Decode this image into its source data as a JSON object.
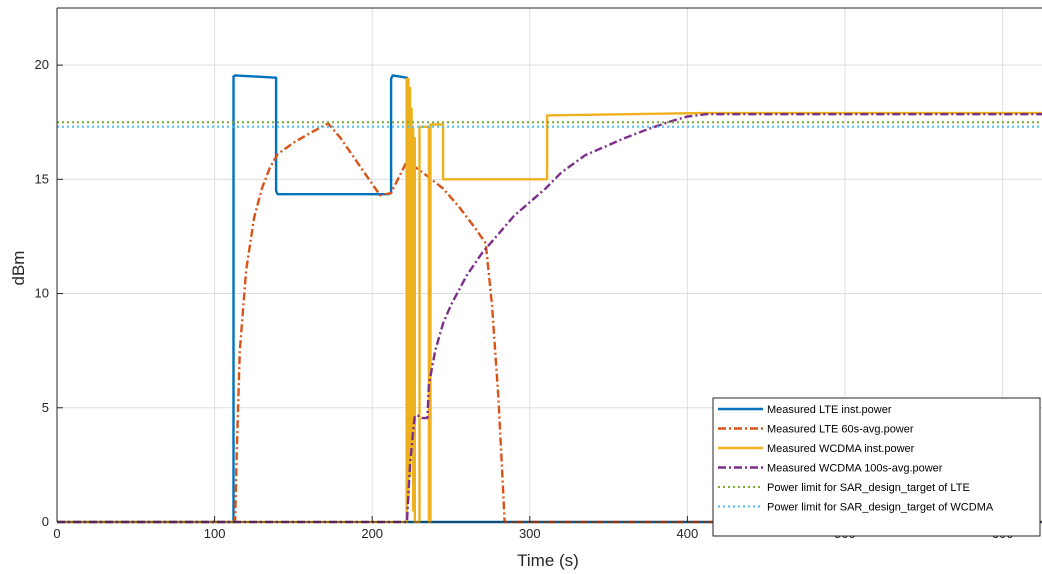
{
  "chart_data": {
    "type": "line",
    "title": "",
    "xlabel": "Time (s)",
    "ylabel": "dBm",
    "xlim": [
      0,
      625
    ],
    "ylim": [
      0,
      22.5
    ],
    "xticks": [
      0,
      100,
      200,
      300,
      400,
      500,
      600
    ],
    "yticks": [
      0,
      5,
      10,
      15,
      20
    ],
    "grid": true,
    "legend_position": "bottom-right",
    "series": [
      {
        "name": "Measured LTE inst.power",
        "color": "#0072BD",
        "dash": "solid",
        "x": [
          0,
          112,
          112,
          113,
          139,
          139,
          140,
          210,
          212,
          212,
          213,
          222,
          222,
          223,
          625
        ],
        "y": [
          0,
          0,
          19.5,
          19.55,
          19.45,
          14.5,
          14.35,
          14.35,
          14.4,
          19.4,
          19.55,
          19.45,
          0,
          0,
          0
        ]
      },
      {
        "name": "Measured LTE 60s-avg.power",
        "color": "#D95319",
        "dash": "dashdot",
        "x": [
          0,
          113,
          114,
          116,
          120,
          125,
          130,
          135,
          140,
          150,
          160,
          172,
          180,
          190,
          200,
          205,
          212,
          222,
          232,
          245,
          255,
          265,
          272,
          276,
          280,
          283,
          284,
          625
        ],
        "y": [
          0,
          0,
          3,
          7.5,
          11,
          13.3,
          14.6,
          15.5,
          16.1,
          16.6,
          17.0,
          17.45,
          16.8,
          15.8,
          14.8,
          14.3,
          14.4,
          15.8,
          15.3,
          14.6,
          13.8,
          12.9,
          12.2,
          9.5,
          5.5,
          1.5,
          0,
          0
        ]
      },
      {
        "name": "Measured WCDMA inst.power",
        "color": "#EDB120",
        "dash": "solid",
        "x": [
          0,
          222,
          222,
          223,
          223,
          224,
          224,
          225,
          225,
          226,
          226,
          227,
          227,
          230,
          230,
          236,
          236,
          237,
          237,
          245,
          245,
          248,
          248,
          311,
          311,
          410,
          625
        ],
        "y": [
          0,
          0,
          19.4,
          19.4,
          1,
          19.0,
          2,
          18.1,
          3,
          17.2,
          0.5,
          16.8,
          0,
          0,
          17.3,
          17.3,
          0,
          0,
          17.4,
          17.4,
          15.0,
          15.0,
          15.0,
          15.0,
          17.8,
          17.9,
          17.9
        ]
      },
      {
        "name": "Measured WCDMA 100s-avg.power",
        "color": "#7E2F8E",
        "dash": "dashdot",
        "x": [
          0,
          222,
          224,
          226,
          227,
          230,
          232,
          235,
          236,
          240,
          245,
          250,
          260,
          270,
          280,
          290,
          300,
          310,
          320,
          330,
          335,
          340,
          350,
          360,
          375,
          390,
          400,
          412,
          450,
          500,
          625
        ],
        "y": [
          0,
          0,
          2.5,
          4.0,
          4.65,
          4.65,
          4.55,
          4.55,
          6.0,
          7.5,
          8.7,
          9.5,
          10.8,
          11.8,
          12.6,
          13.4,
          14.0,
          14.6,
          15.3,
          15.8,
          16.05,
          16.2,
          16.5,
          16.8,
          17.2,
          17.55,
          17.75,
          17.85,
          17.85,
          17.85,
          17.85
        ]
      },
      {
        "name": "Power limit for SAR_design_target of LTE",
        "color": "#77AC30",
        "dash": "dotted",
        "x": [
          0,
          625
        ],
        "y": [
          17.5,
          17.5
        ]
      },
      {
        "name": "Power limit for SAR_design_target of WCDMA",
        "color": "#4DBEEE",
        "dash": "dotted",
        "x": [
          0,
          625
        ],
        "y": [
          17.3,
          17.3
        ]
      }
    ]
  }
}
